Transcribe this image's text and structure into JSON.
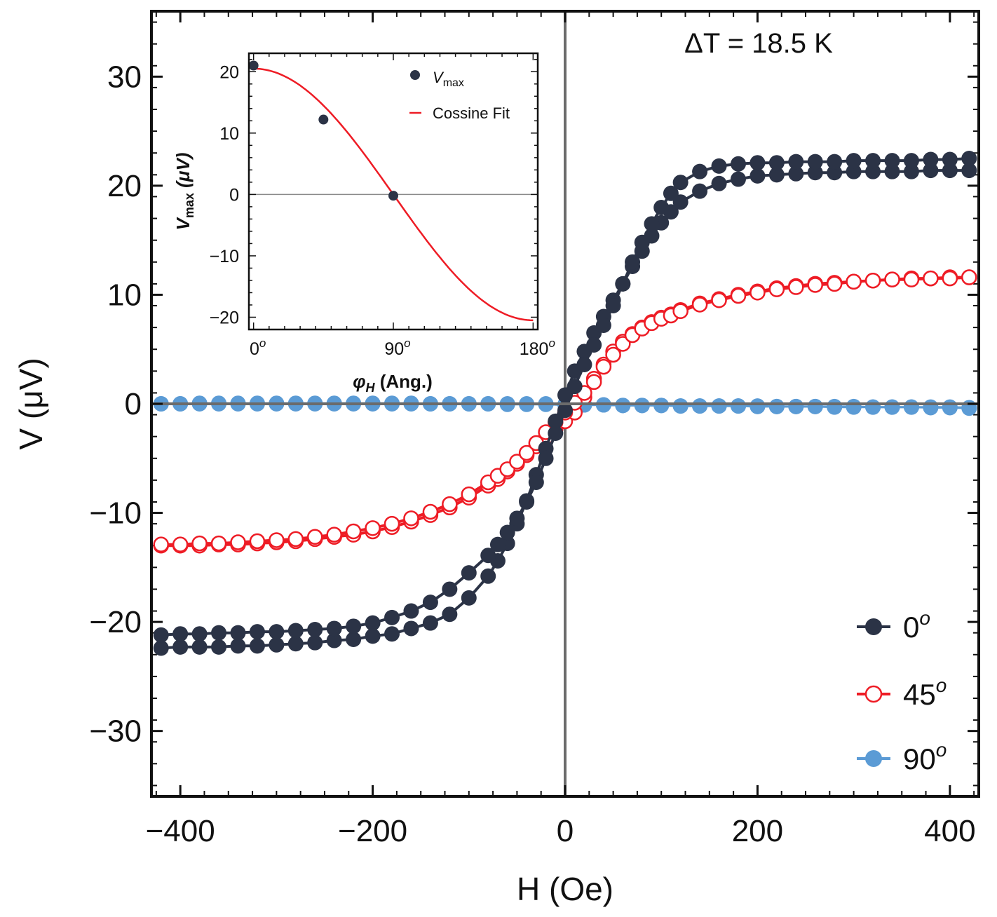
{
  "chart_data": [
    {
      "type": "scatter",
      "title": "",
      "annotation": "ΔT = 18.5 K",
      "xlabel": "H (Oe)",
      "ylabel": "V (μV)",
      "xlim": [
        -430,
        430
      ],
      "ylim": [
        -36,
        36
      ],
      "xticks": [
        -400,
        -200,
        0,
        200,
        400
      ],
      "xtick_labels": [
        "−400",
        "−200",
        "0",
        "200",
        "400"
      ],
      "yticks": [
        -30,
        -20,
        -10,
        0,
        10,
        20,
        30
      ],
      "ytick_labels": [
        "−30",
        "−20",
        "−10",
        "0",
        "10",
        "20",
        "30"
      ],
      "legend_position": "bottom-right",
      "series": [
        {
          "name": "0",
          "name_superscript": "o",
          "color": "#2b3346",
          "marker": "filled-circle",
          "x": [
            -420,
            -400,
            -380,
            -360,
            -340,
            -320,
            -300,
            -280,
            -260,
            -240,
            -220,
            -200,
            -180,
            -160,
            -140,
            -120,
            -100,
            -80,
            -70,
            -60,
            -50,
            -40,
            -30,
            -20,
            -10,
            0,
            10,
            20,
            30,
            40,
            50,
            60,
            70,
            80,
            90,
            100,
            110,
            120,
            140,
            160,
            180,
            200,
            220,
            240,
            260,
            280,
            300,
            320,
            340,
            360,
            380,
            400,
            420
          ],
          "y_up": [
            -22.4,
            -22.3,
            -22.3,
            -22.3,
            -22.2,
            -22.2,
            -22.1,
            -22.0,
            -21.9,
            -21.7,
            -21.6,
            -21.3,
            -21.1,
            -20.6,
            -20.1,
            -19.3,
            -17.8,
            -15.8,
            -14.4,
            -12.8,
            -11.0,
            -8.9,
            -6.5,
            -4.1,
            -1.6,
            0.8,
            3.0,
            4.8,
            6.5,
            8.0,
            9.5,
            11.0,
            12.6,
            14.0,
            15.4,
            16.6,
            17.6,
            18.5,
            19.5,
            20.2,
            20.6,
            20.9,
            21.0,
            21.1,
            21.2,
            21.2,
            21.3,
            21.3,
            21.3,
            21.3,
            21.4,
            21.4,
            21.4
          ],
          "y_down": [
            -21.2,
            -21.1,
            -21.1,
            -21.0,
            -21.0,
            -20.9,
            -20.9,
            -20.8,
            -20.7,
            -20.6,
            -20.4,
            -20.1,
            -19.6,
            -19.0,
            -18.2,
            -17.0,
            -15.5,
            -13.9,
            -12.9,
            -11.8,
            -10.5,
            -9.0,
            -7.2,
            -5.0,
            -2.7,
            -0.6,
            1.6,
            3.6,
            5.4,
            7.2,
            9.0,
            11.0,
            13.0,
            14.8,
            16.5,
            18.0,
            19.3,
            20.3,
            21.3,
            21.8,
            22.0,
            22.1,
            22.1,
            22.2,
            22.2,
            22.2,
            22.3,
            22.3,
            22.3,
            22.3,
            22.4,
            22.4,
            22.5
          ]
        },
        {
          "name": "45",
          "name_superscript": "o",
          "color": "#ee1c25",
          "marker": "open-circle",
          "x": [
            -420,
            -400,
            -380,
            -360,
            -340,
            -320,
            -300,
            -280,
            -260,
            -240,
            -220,
            -200,
            -180,
            -160,
            -140,
            -120,
            -100,
            -80,
            -70,
            -60,
            -50,
            -40,
            -30,
            -20,
            -10,
            0,
            10,
            20,
            30,
            40,
            50,
            60,
            70,
            80,
            90,
            100,
            110,
            120,
            140,
            160,
            180,
            200,
            220,
            240,
            260,
            280,
            300,
            320,
            340,
            360,
            380,
            400,
            420
          ],
          "y_up": [
            -13.0,
            -13.0,
            -13.0,
            -12.9,
            -12.9,
            -12.8,
            -12.7,
            -12.6,
            -12.4,
            -12.2,
            -12.0,
            -11.7,
            -11.3,
            -10.8,
            -10.2,
            -9.5,
            -8.6,
            -7.5,
            -6.9,
            -6.2,
            -5.5,
            -4.7,
            -3.9,
            -3.1,
            -2.3,
            -1.6,
            -0.8,
            0.6,
            2.3,
            3.6,
            4.8,
            5.7,
            6.4,
            7.0,
            7.5,
            7.9,
            8.2,
            8.6,
            9.2,
            9.6,
            10.0,
            10.3,
            10.6,
            10.8,
            11.0,
            11.1,
            11.2,
            11.3,
            11.4,
            11.5,
            11.5,
            11.6,
            11.6
          ],
          "y_down": [
            -12.9,
            -12.9,
            -12.8,
            -12.8,
            -12.7,
            -12.6,
            -12.5,
            -12.4,
            -12.2,
            -12.0,
            -11.7,
            -11.4,
            -11.0,
            -10.5,
            -9.9,
            -9.2,
            -8.3,
            -7.2,
            -6.6,
            -6.0,
            -5.3,
            -4.5,
            -3.6,
            -2.6,
            -1.7,
            -0.8,
            0.1,
            1.0,
            2.0,
            3.4,
            4.5,
            5.5,
            6.3,
            6.9,
            7.4,
            7.8,
            8.1,
            8.5,
            9.1,
            9.5,
            9.9,
            10.2,
            10.5,
            10.7,
            10.9,
            11.0,
            11.2,
            11.3,
            11.4,
            11.4,
            11.5,
            11.5,
            11.6
          ]
        },
        {
          "name": "90",
          "name_superscript": "o",
          "color": "#5b9bd5",
          "marker": "filled-circle",
          "x": [
            -420,
            -400,
            -380,
            -360,
            -340,
            -320,
            -300,
            -280,
            -260,
            -240,
            -220,
            -200,
            -180,
            -160,
            -140,
            -120,
            -100,
            -80,
            -60,
            -40,
            -20,
            0,
            20,
            40,
            60,
            80,
            100,
            120,
            140,
            160,
            180,
            200,
            220,
            240,
            260,
            280,
            300,
            320,
            340,
            360,
            380,
            400,
            420
          ],
          "y_up": [
            0.0,
            0.0,
            0.05,
            0.05,
            0.05,
            0.05,
            0.05,
            0.05,
            0.05,
            0.05,
            0.05,
            0.05,
            0.05,
            0.05,
            0.0,
            0.0,
            0.0,
            0.0,
            0.0,
            0.0,
            0.0,
            -0.05,
            -0.1,
            -0.1,
            -0.15,
            -0.15,
            -0.15,
            -0.2,
            -0.2,
            -0.2,
            -0.2,
            -0.2,
            -0.25,
            -0.25,
            -0.25,
            -0.25,
            -0.25,
            -0.3,
            -0.3,
            -0.3,
            -0.3,
            -0.3,
            -0.35
          ],
          "y_down": [
            0.0,
            0.0,
            0.0,
            0.0,
            0.0,
            0.0,
            0.0,
            0.0,
            0.0,
            0.0,
            0.0,
            0.0,
            0.0,
            0.0,
            0.0,
            0.0,
            0.0,
            0.0,
            -0.05,
            -0.05,
            -0.05,
            -0.1,
            -0.1,
            -0.1,
            -0.15,
            -0.15,
            -0.15,
            -0.2,
            -0.2,
            -0.2,
            -0.2,
            -0.25,
            -0.25,
            -0.25,
            -0.25,
            -0.3,
            -0.3,
            -0.3,
            -0.3,
            -0.3,
            -0.35,
            -0.35,
            -0.4
          ]
        }
      ]
    },
    {
      "type": "scatter",
      "title": "",
      "xlabel": "φ_H (Ang.)",
      "ylabel": "V_max (μV)",
      "xlim": [
        -3,
        183
      ],
      "ylim": [
        -22,
        23
      ],
      "xticks": [
        0,
        90,
        180
      ],
      "xtick_labels": [
        "0",
        "90",
        "180"
      ],
      "xtick_superscript": "o",
      "yticks": [
        -20,
        -10,
        0,
        10,
        20
      ],
      "ytick_labels": [
        "−20",
        "−10",
        "0",
        "10",
        "20"
      ],
      "legend_position": "top-right",
      "series": [
        {
          "name": "V",
          "name_subscript": "max",
          "color": "#2b3346",
          "marker": "filled-circle",
          "x": [
            0,
            45,
            90
          ],
          "y": [
            21.0,
            12.2,
            -0.2
          ]
        },
        {
          "name": "Cossine Fit",
          "color": "#ee1c25",
          "marker": "line",
          "amplitude": 20.5,
          "x_range": [
            0,
            180
          ]
        }
      ]
    }
  ]
}
